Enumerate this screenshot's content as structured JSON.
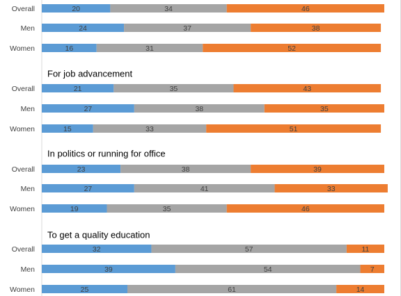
{
  "chart_data": {
    "type": "bar",
    "orientation": "horizontal",
    "stacked": true,
    "grid": false,
    "legend": "none",
    "xlim": [
      0,
      100
    ],
    "colors": [
      "#5B9BD5",
      "#A5A5A5",
      "#ED7D31"
    ],
    "groups": [
      {
        "title": "",
        "rows": [
          {
            "label": "Overall",
            "values": [
              20,
              34,
              46
            ]
          },
          {
            "label": "Men",
            "values": [
              24,
              37,
              38
            ]
          },
          {
            "label": "Women",
            "values": [
              16,
              31,
              52
            ]
          }
        ]
      },
      {
        "title": "For job advancement",
        "rows": [
          {
            "label": "Overall",
            "values": [
              21,
              35,
              43
            ]
          },
          {
            "label": "Men",
            "values": [
              27,
              38,
              35
            ]
          },
          {
            "label": "Women",
            "values": [
              15,
              33,
              51
            ]
          }
        ]
      },
      {
        "title": "In politics or running for office",
        "rows": [
          {
            "label": "Overall",
            "values": [
              23,
              38,
              39
            ]
          },
          {
            "label": "Men",
            "values": [
              27,
              41,
              33
            ]
          },
          {
            "label": "Women",
            "values": [
              19,
              35,
              46
            ]
          }
        ]
      },
      {
        "title": "To get a quality education",
        "rows": [
          {
            "label": "Overall",
            "values": [
              32,
              57,
              11
            ]
          },
          {
            "label": "Men",
            "values": [
              39,
              54,
              7
            ]
          },
          {
            "label": "Women",
            "values": [
              25,
              61,
              14
            ]
          }
        ]
      }
    ]
  }
}
